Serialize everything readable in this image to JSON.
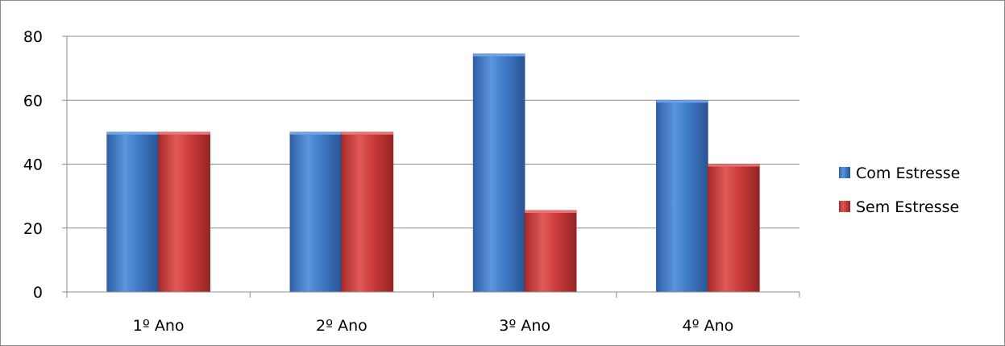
{
  "chart_data": {
    "type": "bar",
    "categories": [
      "1º Ano",
      "2º Ano",
      "3º Ano",
      "4º Ano"
    ],
    "series": [
      {
        "name": "Com Estresse",
        "values": [
          50,
          50,
          74.5,
          60
        ],
        "color": "#3a76c4"
      },
      {
        "name": "Sem Estresse",
        "values": [
          50,
          50,
          25.5,
          40
        ],
        "color": "#c8393a"
      }
    ],
    "y_ticks": [
      0,
      20,
      40,
      60,
      80
    ],
    "ylim": [
      0,
      80
    ],
    "grid": true,
    "legend_position": "right"
  }
}
